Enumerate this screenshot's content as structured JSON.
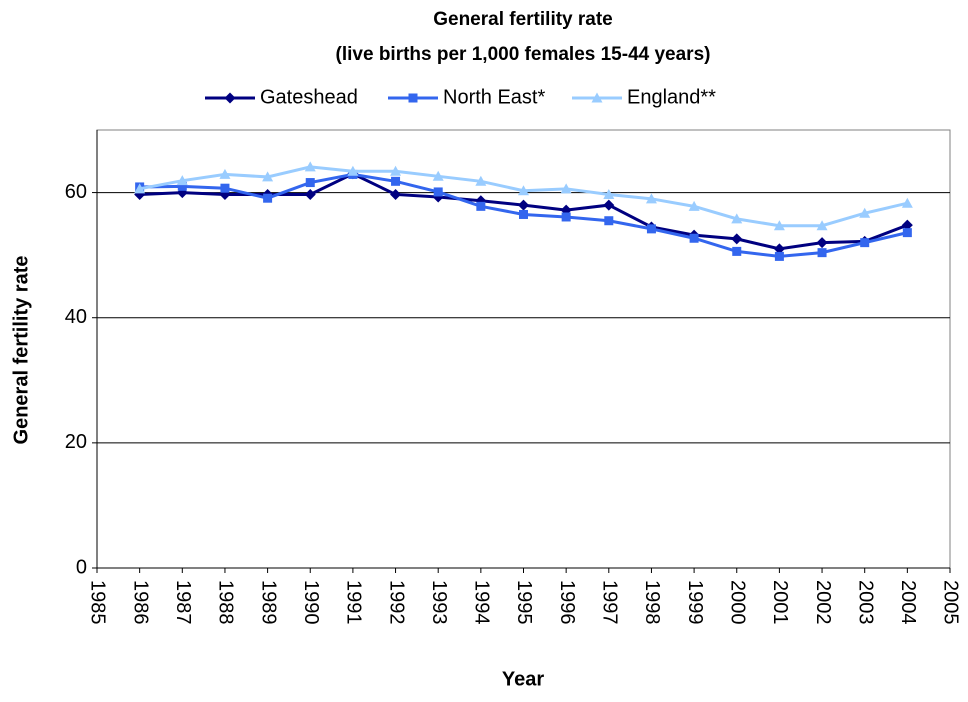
{
  "chart_data": {
    "type": "line",
    "title": "General fertility rate",
    "subtitle": "(live births per 1,000 females 15-44 years)",
    "x_label": "Year",
    "y_label": "General fertility rate",
    "x": [
      1986,
      1987,
      1988,
      1989,
      1990,
      1991,
      1992,
      1993,
      1994,
      1995,
      1996,
      1997,
      1998,
      1999,
      2000,
      2001,
      2002,
      2003,
      2004
    ],
    "series": [
      {
        "name": "Gateshead",
        "color": "#000080",
        "marker": "diamond",
        "values": [
          59.7,
          60.0,
          59.7,
          59.7,
          59.7,
          63.0,
          59.7,
          59.3,
          58.7,
          58.0,
          57.2,
          58.0,
          54.5,
          53.2,
          52.6,
          51.0,
          52.0,
          52.2,
          54.8
        ]
      },
      {
        "name": "North East*",
        "color": "#3366ee",
        "marker": "square",
        "values": [
          60.9,
          61.0,
          60.7,
          59.1,
          61.6,
          62.9,
          61.8,
          60.1,
          57.8,
          56.5,
          56.1,
          55.5,
          54.2,
          52.7,
          50.6,
          49.8,
          50.4,
          52.0,
          53.6
        ]
      },
      {
        "name": "England**",
        "color": "#99ccff",
        "marker": "triangle",
        "values": [
          60.6,
          61.9,
          62.9,
          62.5,
          64.1,
          63.4,
          63.4,
          62.6,
          61.8,
          60.3,
          60.6,
          59.7,
          59.0,
          57.8,
          55.8,
          54.7,
          54.7,
          56.7,
          58.3
        ]
      }
    ],
    "xlim": [
      1985,
      2005
    ],
    "xticks": [
      1985,
      1986,
      1987,
      1988,
      1989,
      1990,
      1991,
      1992,
      1993,
      1994,
      1995,
      1996,
      1997,
      1998,
      1999,
      2000,
      2001,
      2002,
      2003,
      2004,
      2005
    ],
    "ylim": [
      0,
      70
    ],
    "yticks": [
      0,
      20,
      40,
      60
    ],
    "grid": true,
    "legend": "top"
  }
}
